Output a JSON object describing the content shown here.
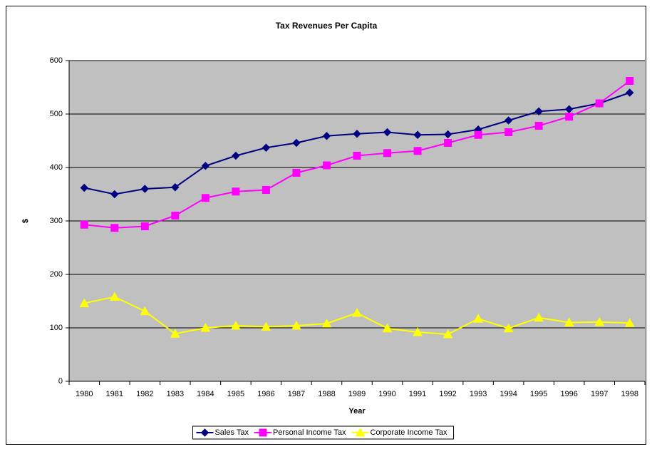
{
  "chart_data": {
    "type": "line",
    "title": "Tax Revenues Per Capita",
    "x_label": "Year",
    "y_label": "$",
    "categories": [
      "1980",
      "1981",
      "1982",
      "1983",
      "1984",
      "1985",
      "1986",
      "1987",
      "1988",
      "1989",
      "1990",
      "1991",
      "1992",
      "1993",
      "1994",
      "1995",
      "1996",
      "1997",
      "1998"
    ],
    "series": [
      {
        "name": "Sales Tax",
        "color": "#000080",
        "marker": "diamond",
        "values": [
          362,
          350,
          360,
          363,
          403,
          422,
          437,
          446,
          459,
          463,
          466,
          461,
          462,
          471,
          488,
          505,
          509,
          520,
          540
        ]
      },
      {
        "name": "Personal Income Tax",
        "color": "#ff00ff",
        "marker": "square",
        "values": [
          293,
          287,
          290,
          310,
          343,
          355,
          358,
          390,
          404,
          422,
          427,
          431,
          446,
          461,
          466,
          478,
          495,
          520,
          562
        ]
      },
      {
        "name": "Corporate Income Tax",
        "color": "#ffff00",
        "marker": "triangle",
        "values": [
          146,
          158,
          131,
          89,
          100,
          104,
          102,
          104,
          108,
          128,
          99,
          92,
          88,
          117,
          99,
          119,
          110,
          111,
          109
        ]
      }
    ],
    "ylim": [
      0,
      600
    ],
    "yticks": [
      0,
      100,
      200,
      300,
      400,
      500,
      600
    ],
    "grid": true,
    "plot_background": "#c0c0c0",
    "legend": "bottom"
  }
}
